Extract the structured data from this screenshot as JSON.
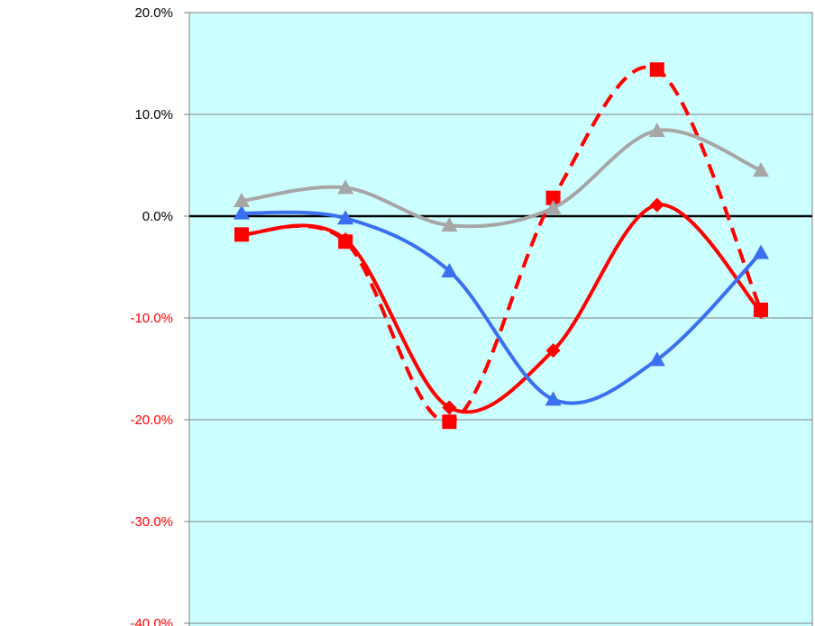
{
  "chart_data": {
    "type": "line",
    "title": "",
    "xlabel": "",
    "ylabel": "",
    "ylim": [
      -40,
      20
    ],
    "yticks": [
      {
        "value": 20,
        "label": "20.0%",
        "color": "#000000"
      },
      {
        "value": 10,
        "label": "10.0%",
        "color": "#000000"
      },
      {
        "value": 0,
        "label": "0.0%",
        "color": "#000000"
      },
      {
        "value": -10,
        "label": "-10.0%",
        "color": "#ff0000"
      },
      {
        "value": -20,
        "label": "-20.0%",
        "color": "#ff0000"
      },
      {
        "value": -30,
        "label": "-30.0%",
        "color": "#ff0000"
      },
      {
        "value": -40,
        "label": "-40.0%",
        "color": "#ff0000"
      }
    ],
    "x": [
      1,
      2,
      3,
      4,
      5,
      6
    ],
    "grid": true,
    "plot_background": "#ccffff",
    "series": [
      {
        "values": [
          -1.8,
          -2.3,
          -18.8,
          -13.2,
          1.1,
          -9.4
        ],
        "color": "#ff0000",
        "dash": "solid",
        "marker": "diamond"
      },
      {
        "values": [
          -1.8,
          -2.5,
          -20.2,
          1.8,
          14.4,
          -9.2
        ],
        "color": "#ff0000",
        "dash": "dashed",
        "marker": "square"
      },
      {
        "values": [
          0.3,
          -0.2,
          -5.4,
          -18.0,
          -14.1,
          -3.6
        ],
        "color": "#3a6ff0",
        "dash": "solid",
        "marker": "triangle"
      },
      {
        "values": [
          1.5,
          2.8,
          -0.9,
          0.8,
          8.4,
          4.5
        ],
        "color": "#a6a6a6",
        "dash": "solid",
        "marker": "triangle"
      }
    ]
  }
}
